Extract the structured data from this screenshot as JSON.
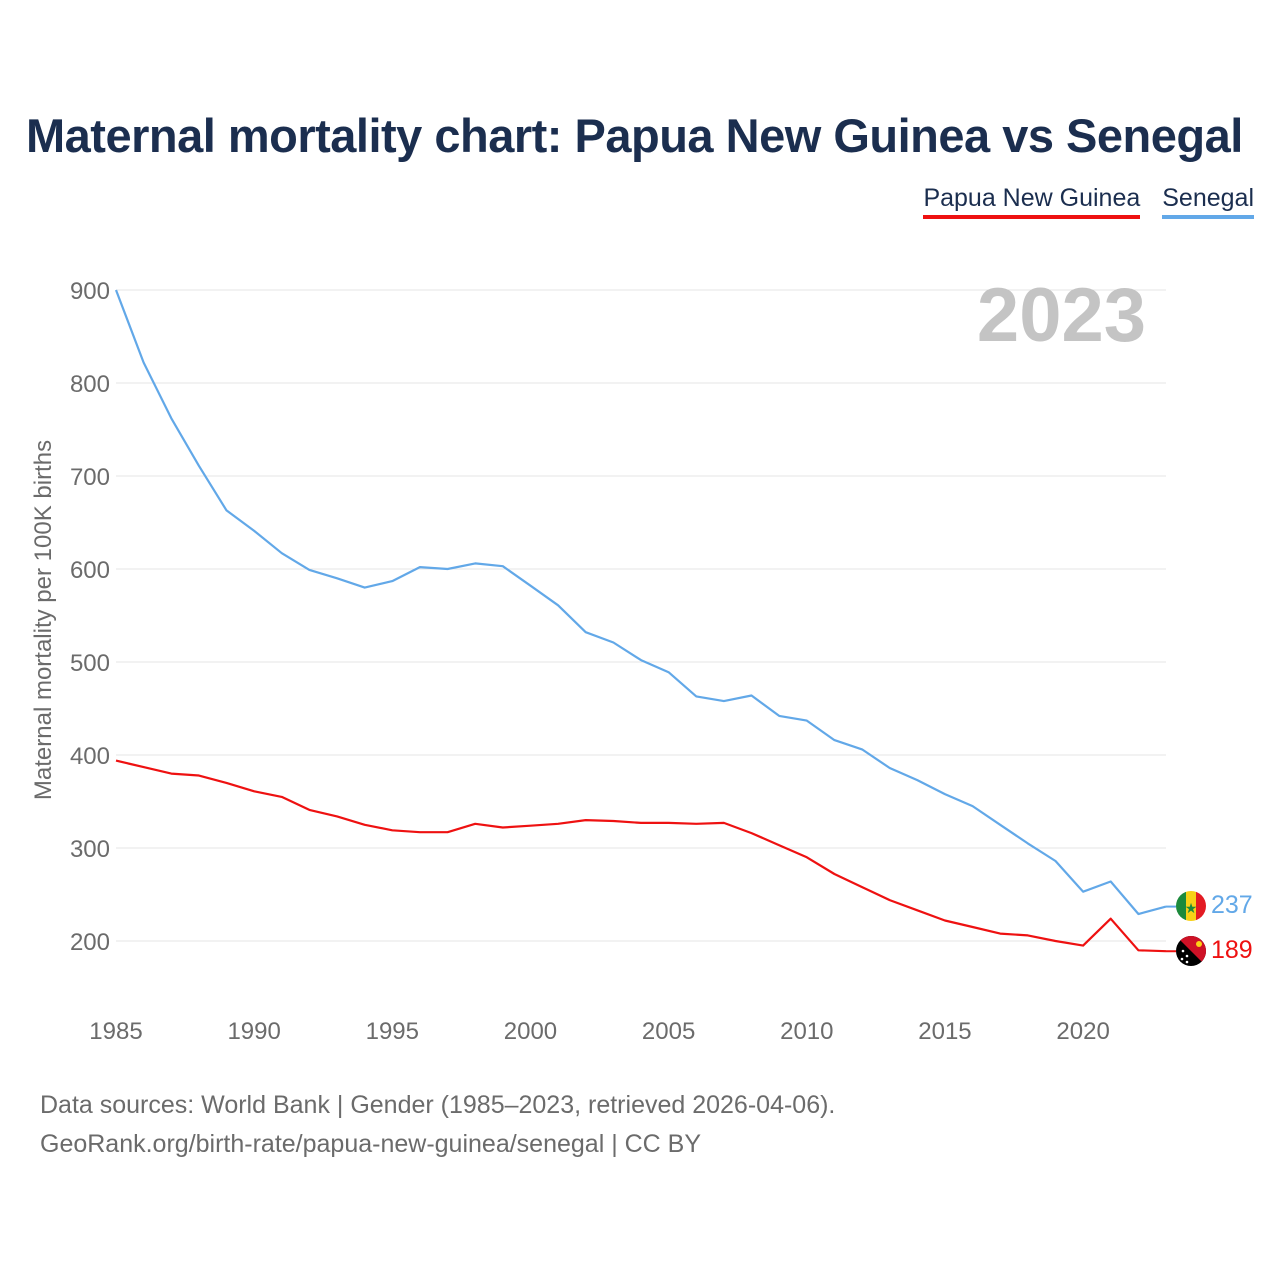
{
  "title": "Maternal mortality chart: Papua New Guinea vs Senegal",
  "legend": {
    "pg": "Papua New Guinea",
    "sn": "Senegal"
  },
  "colors": {
    "pg": "#ee1111",
    "sn": "#62a8e8",
    "title": "#1b2e4f"
  },
  "footer": {
    "line1": "Data sources: World Bank | Gender (1985–2023, retrieved 2026-04-06).",
    "line2": "GeoRank.org/birth-rate/papua-new-guinea/senegal | CC BY"
  },
  "chart_data": {
    "type": "line",
    "title": "Maternal mortality chart: Papua New Guinea vs Senegal",
    "ylabel": "Maternal mortality per 100K births",
    "xlabel": "",
    "current_year": "2023",
    "x": [
      1985,
      1986,
      1987,
      1988,
      1989,
      1990,
      1991,
      1992,
      1993,
      1994,
      1995,
      1996,
      1997,
      1998,
      1999,
      2000,
      2001,
      2002,
      2003,
      2004,
      2005,
      2006,
      2007,
      2008,
      2009,
      2010,
      2011,
      2012,
      2013,
      2014,
      2015,
      2016,
      2017,
      2018,
      2019,
      2020,
      2021,
      2022,
      2023
    ],
    "xticks": [
      1985,
      1990,
      1995,
      2000,
      2005,
      2010,
      2015,
      2020
    ],
    "yticks": [
      200,
      300,
      400,
      500,
      600,
      700,
      800,
      900
    ],
    "xlim": [
      1985,
      2023
    ],
    "ylim": [
      200,
      900
    ],
    "grid": true,
    "series": [
      {
        "name": "Papua New Guinea",
        "key": "pg",
        "end_label": "189",
        "values": [
          394,
          387,
          380,
          378,
          370,
          361,
          355,
          341,
          334,
          325,
          319,
          317,
          317,
          326,
          322,
          324,
          326,
          330,
          329,
          327,
          327,
          326,
          327,
          316,
          303,
          290,
          272,
          258,
          244,
          233,
          222,
          215,
          208,
          206,
          200,
          195,
          224,
          190,
          189
        ]
      },
      {
        "name": "Senegal",
        "key": "sn",
        "end_label": "237",
        "values": [
          900,
          822,
          762,
          711,
          663,
          641,
          617,
          599,
          590,
          580,
          587,
          602,
          600,
          606,
          603,
          582,
          561,
          532,
          521,
          502,
          489,
          463,
          458,
          464,
          442,
          437,
          416,
          406,
          386,
          373,
          358,
          345,
          325,
          305,
          286,
          253,
          264,
          229,
          237
        ]
      }
    ]
  }
}
